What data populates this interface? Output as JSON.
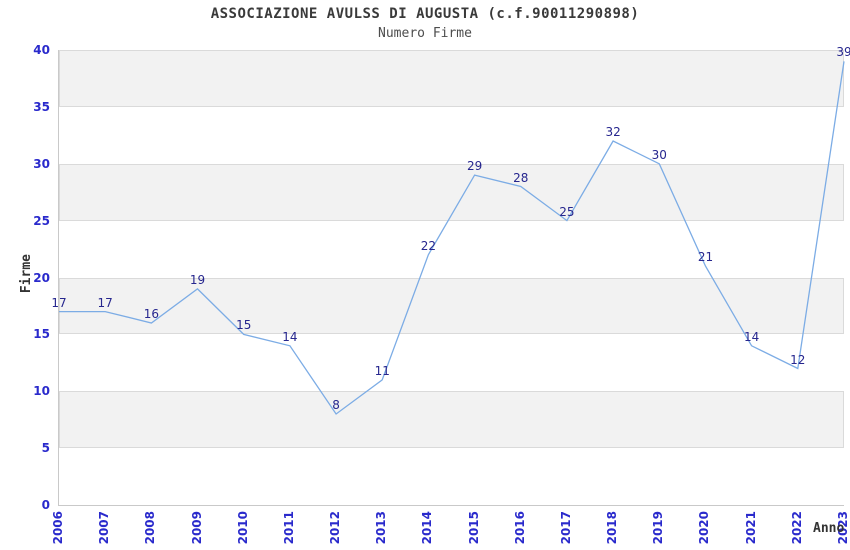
{
  "header": {
    "title": "ASSOCIAZIONE AVULSS DI AUGUSTA (c.f.90011290898)",
    "subtitle": "Numero Firme"
  },
  "chart_data": {
    "type": "line",
    "title": "ASSOCIAZIONE AVULSS DI AUGUSTA (c.f.90011290898)",
    "subtitle": "Numero Firme",
    "xlabel": "Anno",
    "ylabel": "Firme",
    "categories": [
      "2006",
      "2007",
      "2008",
      "2009",
      "2010",
      "2011",
      "2012",
      "2013",
      "2014",
      "2015",
      "2016",
      "2017",
      "2018",
      "2019",
      "2020",
      "2021",
      "2022",
      "2023"
    ],
    "values": [
      17,
      17,
      16,
      19,
      15,
      14,
      8,
      11,
      22,
      29,
      28,
      25,
      32,
      30,
      21,
      14,
      12,
      39
    ],
    "ylim": [
      0,
      40
    ],
    "ytick_step": 5,
    "grid": true,
    "legend": "none",
    "data_labels": true,
    "colors": {
      "line": "#7cace5",
      "data_label": "#26268e",
      "tick_label": "#2a2acc",
      "band_fill": "#f2f2f2",
      "band_border": "#dadada",
      "axis": "#c9c9c9",
      "title_text": "#3a3a3a"
    }
  }
}
